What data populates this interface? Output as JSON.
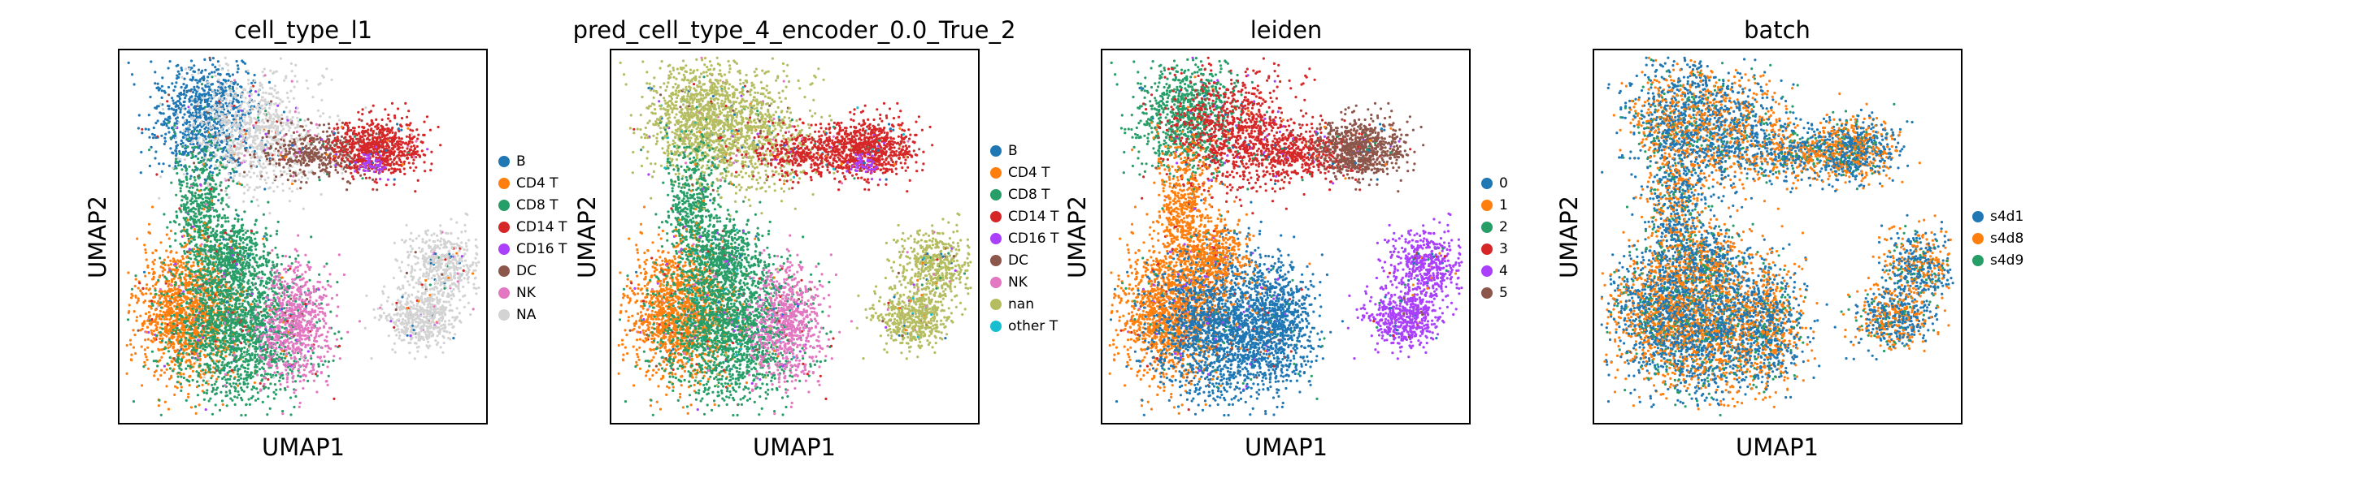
{
  "chart_data": [
    {
      "type": "scatter",
      "title": "cell_type_l1",
      "xlabel": "UMAP1",
      "ylabel": "UMAP2",
      "grid": false,
      "legend_position": "right",
      "legend": [
        {
          "name": "B",
          "color": "#1f77b4"
        },
        {
          "name": "CD4 T",
          "color": "#ff7f0e"
        },
        {
          "name": "CD8 T",
          "color": "#279e68"
        },
        {
          "name": "CD14 T",
          "color": "#d62728"
        },
        {
          "name": "CD16 T",
          "color": "#aa40fc"
        },
        {
          "name": "DC",
          "color": "#8c564b"
        },
        {
          "name": "NK",
          "color": "#e377c2"
        },
        {
          "name": "NA",
          "color": "#d3d3d3"
        }
      ]
    },
    {
      "type": "scatter",
      "title": "pred_cell_type_4_encoder_0.0_True_2",
      "xlabel": "UMAP1",
      "ylabel": "UMAP2",
      "grid": false,
      "legend_position": "right",
      "legend": [
        {
          "name": "B",
          "color": "#1f77b4"
        },
        {
          "name": "CD4 T",
          "color": "#ff7f0e"
        },
        {
          "name": "CD8 T",
          "color": "#279e68"
        },
        {
          "name": "CD14 T",
          "color": "#d62728"
        },
        {
          "name": "CD16 T",
          "color": "#aa40fc"
        },
        {
          "name": "DC",
          "color": "#8c564b"
        },
        {
          "name": "NK",
          "color": "#e377c2"
        },
        {
          "name": "nan",
          "color": "#b5bd61"
        },
        {
          "name": "other T",
          "color": "#17becf"
        }
      ]
    },
    {
      "type": "scatter",
      "title": "leiden",
      "xlabel": "UMAP1",
      "ylabel": "UMAP2",
      "grid": false,
      "legend_position": "right",
      "legend": [
        {
          "name": "0",
          "color": "#1f77b4"
        },
        {
          "name": "1",
          "color": "#ff7f0e"
        },
        {
          "name": "2",
          "color": "#279e68"
        },
        {
          "name": "3",
          "color": "#d62728"
        },
        {
          "name": "4",
          "color": "#aa40fc"
        },
        {
          "name": "5",
          "color": "#8c564b"
        }
      ]
    },
    {
      "type": "scatter",
      "title": "batch",
      "xlabel": "UMAP1",
      "ylabel": "UMAP2",
      "grid": false,
      "legend_position": "right",
      "legend": [
        {
          "name": "s4d1",
          "color": "#1f77b4"
        },
        {
          "name": "s4d8",
          "color": "#ff7f0e"
        },
        {
          "name": "s4d9",
          "color": "#279e68"
        }
      ]
    }
  ]
}
